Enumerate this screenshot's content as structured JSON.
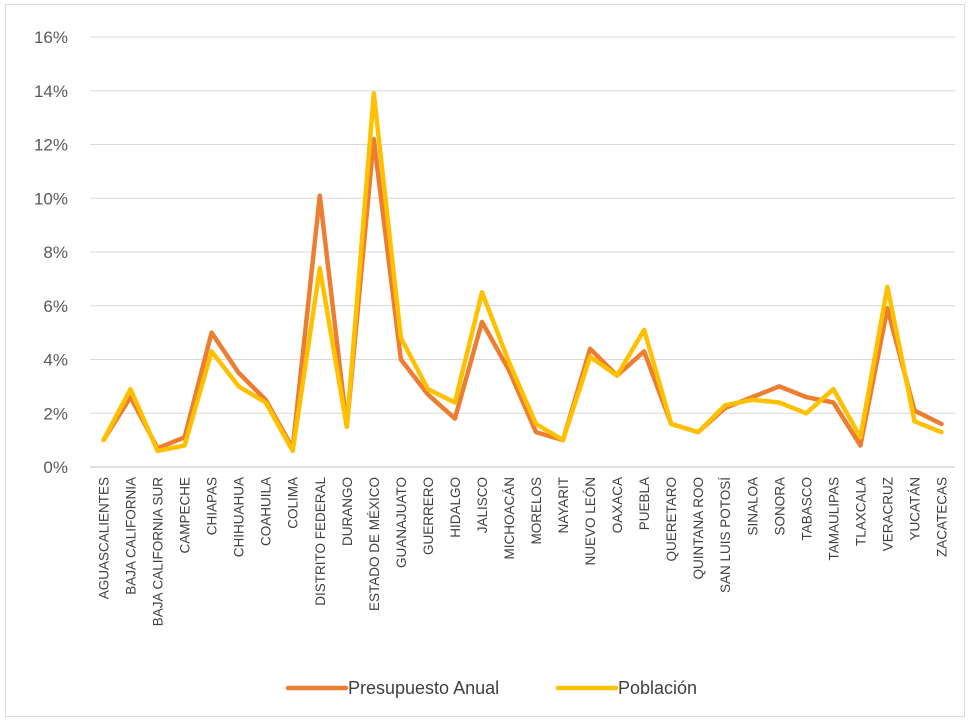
{
  "chart_data": {
    "type": "line",
    "title": "",
    "xlabel": "",
    "ylabel": "",
    "ylim": [
      0,
      0.16
    ],
    "y_ticks": [
      "0%",
      "2%",
      "4%",
      "6%",
      "8%",
      "10%",
      "12%",
      "14%",
      "16%"
    ],
    "grid": true,
    "legend_position": "bottom",
    "categories": [
      "AGUASCALIENTES",
      "BAJA CALIFORNIA",
      "BAJA CALIFORNIA SUR",
      "CAMPECHE",
      "CHIAPAS",
      "CHIHUAHUA",
      "COAHUILA",
      "COLIMA",
      "DISTRITO FEDERAL",
      "DURANGO",
      "ESTADO DE MÉXICO",
      "GUANAJUATO",
      "GUERRERO",
      "HIDALGO",
      "JALISCO",
      "MICHOACÁN",
      "MORELOS",
      "NAYARIT",
      "NUEVO LEÓN",
      "OAXACA",
      "PUEBLA",
      "QUERETARO",
      "QUINTANA ROO",
      "SAN LUIS POTOSÍ",
      "SINALOA",
      "SONORA",
      "TABASCO",
      "TAMAULIPAS",
      "TLAXCALA",
      "VERACRUZ",
      "YUCATÁN",
      "ZACATECAS"
    ],
    "series": [
      {
        "name": "Presupuesto Anual",
        "color": "#ed7d31",
        "values": [
          0.01,
          0.026,
          0.007,
          0.011,
          0.05,
          0.035,
          0.025,
          0.007,
          0.101,
          0.015,
          0.122,
          0.04,
          0.027,
          0.018,
          0.054,
          0.036,
          0.013,
          0.01,
          0.044,
          0.034,
          0.043,
          0.016,
          0.013,
          0.022,
          0.026,
          0.03,
          0.026,
          0.024,
          0.008,
          0.059,
          0.021,
          0.016
        ]
      },
      {
        "name": "Población",
        "color": "#ffc000",
        "values": [
          0.01,
          0.029,
          0.006,
          0.008,
          0.043,
          0.03,
          0.024,
          0.006,
          0.074,
          0.015,
          0.139,
          0.048,
          0.029,
          0.024,
          0.065,
          0.039,
          0.016,
          0.01,
          0.041,
          0.034,
          0.051,
          0.016,
          0.013,
          0.023,
          0.025,
          0.024,
          0.02,
          0.029,
          0.011,
          0.067,
          0.017,
          0.013
        ]
      }
    ]
  }
}
